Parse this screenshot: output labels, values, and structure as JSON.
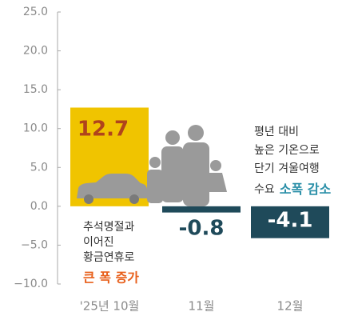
{
  "chart_data": {
    "type": "bar",
    "categories": [
      "'25년 10월",
      "11월",
      "12월"
    ],
    "values": [
      12.7,
      -0.8,
      -4.1
    ],
    "colors": [
      "#f0c400",
      "#1f4a5a",
      "#1f4a5a"
    ],
    "label_colors": [
      "#b0441c",
      "#1f4a5a",
      "#ffffff"
    ],
    "ylim": [
      -10,
      25
    ],
    "yticks": [
      {
        "value": 25,
        "label": "25.0"
      },
      {
        "value": 20,
        "label": "20.0"
      },
      {
        "value": 15,
        "label": "15.0"
      },
      {
        "value": 10,
        "label": "10.0"
      },
      {
        "value": 5,
        "label": "5.0"
      },
      {
        "value": 0,
        "label": "0.0"
      },
      {
        "value": -5,
        "label": "−5.0"
      },
      {
        "value": -10,
        "label": "−10.0"
      }
    ],
    "annotations": [
      {
        "lines": [
          "추석명절과",
          "이어진",
          "황금연휴로"
        ],
        "emphasis": "큰 폭 증가",
        "emphasis_color": "#e8601c"
      },
      {
        "lines": [
          "평년 대비",
          "높은 기온으로",
          "단기 겨울여행",
          "수요"
        ],
        "emphasis": "소폭 감소",
        "emphasis_color": "#2a8fa8"
      }
    ]
  }
}
